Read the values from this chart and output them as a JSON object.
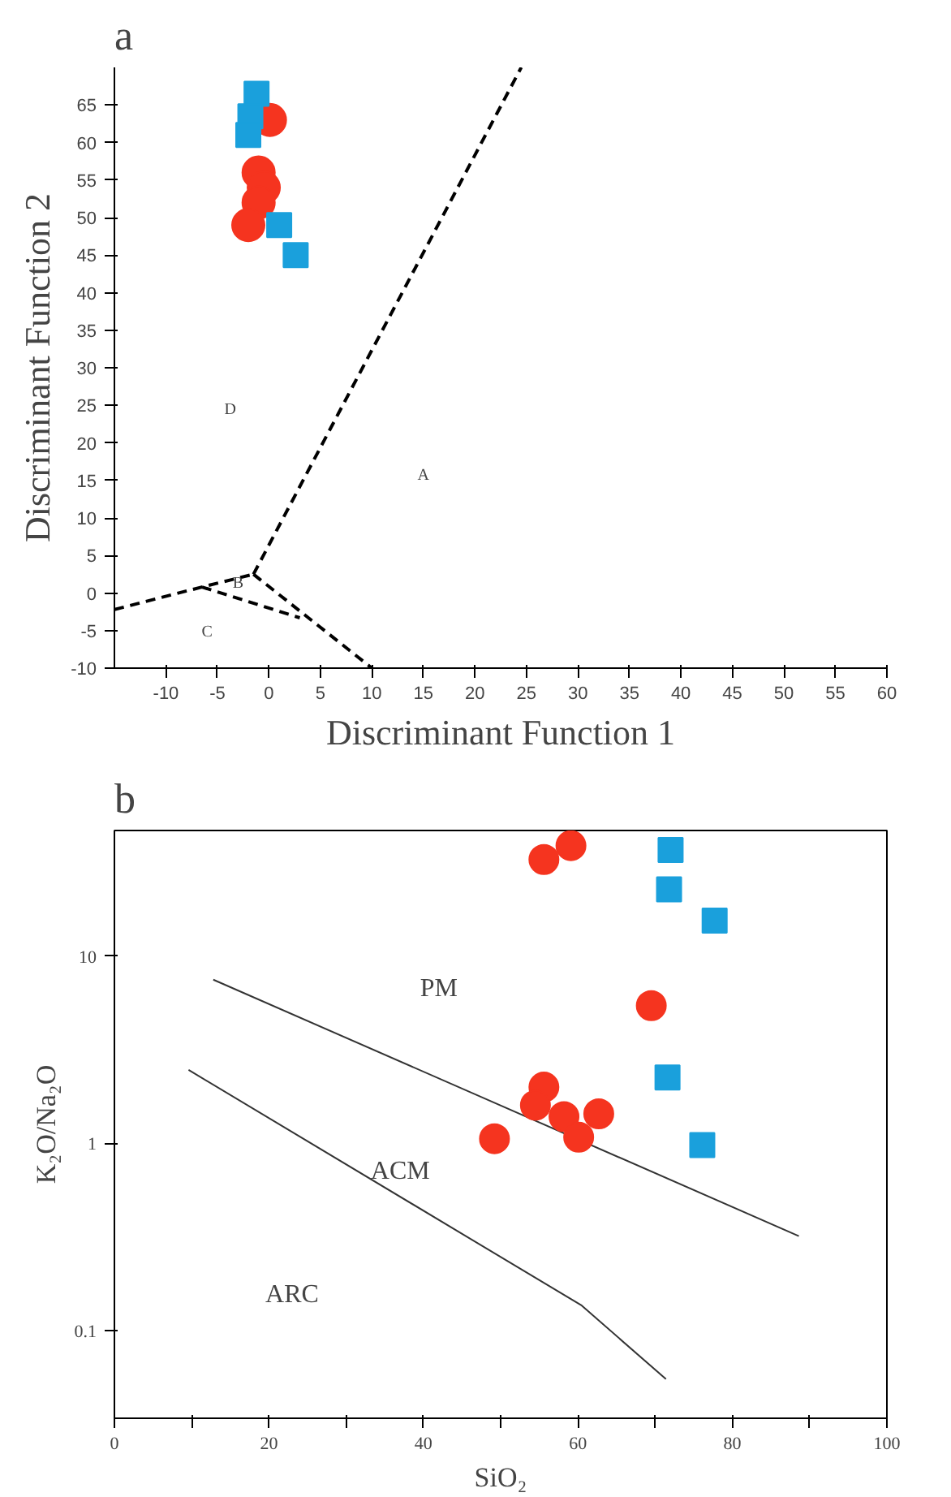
{
  "chart_data": [
    {
      "type": "scatter",
      "title": "a",
      "xlabel": "Discriminant Function 1",
      "ylabel": "Discriminant Function 2",
      "xlim": [
        -15,
        60
      ],
      "ylim": [
        -10,
        70
      ],
      "xticks": [
        -10,
        -5,
        0,
        5,
        10,
        15,
        20,
        25,
        30,
        35,
        40,
        45,
        50,
        55,
        60
      ],
      "yticks": [
        -10,
        -5,
        0,
        5,
        10,
        15,
        20,
        25,
        30,
        35,
        40,
        45,
        50,
        55,
        60,
        65
      ],
      "grid": false,
      "series": [
        {
          "type": "line",
          "color": "#000000",
          "marker": "none",
          "line_style": "dashed",
          "x": [
            -15,
            -6.5,
            -1.5
          ],
          "values": [
            -2.2,
            0.8,
            2.5
          ]
        },
        {
          "type": "line",
          "color": "#000000",
          "marker": "none",
          "line_style": "dashed",
          "x": [
            -1.5,
            24.5
          ],
          "values": [
            2.5,
            70
          ]
        },
        {
          "type": "line",
          "color": "#000000",
          "marker": "none",
          "line_style": "dashed",
          "x": [
            -1.5,
            10
          ],
          "values": [
            2.5,
            -10
          ]
        },
        {
          "type": "line",
          "color": "#000000",
          "marker": "none",
          "line_style": "dashed",
          "x": [
            -6.5,
            3
          ],
          "values": [
            0.8,
            -3.3
          ]
        },
        {
          "color": "#f5341f",
          "marker": "circle",
          "x": [
            0.1,
            -1,
            -0.5,
            -1,
            -2
          ],
          "values": [
            63,
            56,
            54,
            52,
            49
          ]
        },
        {
          "color": "#1aa0dc",
          "marker": "square",
          "x": [
            -1.2,
            -1.8,
            -2,
            1,
            2.6
          ],
          "values": [
            66.5,
            63.5,
            61,
            49,
            45
          ]
        }
      ],
      "annotations": [
        "D",
        "A",
        "B",
        "C"
      ]
    },
    {
      "type": "scatter",
      "title": "b",
      "xlabel": "SiO₂",
      "ylabel": "K₂O/Na₂O",
      "log": "y",
      "xlim": [
        0,
        100
      ],
      "ylim": [
        0.034,
        47
      ],
      "xticks": [
        0,
        {
          "value": 10,
          "label": null
        },
        20,
        {
          "value": 30,
          "label": null
        },
        40,
        {
          "value": 50,
          "label": null
        },
        60,
        {
          "value": 70,
          "label": null
        },
        80,
        {
          "value": 90,
          "label": null
        },
        100
      ],
      "yticks": [
        0.1,
        1,
        10
      ],
      "grid": false,
      "series": [
        {
          "type": "line",
          "color": "#333333",
          "marker": "none",
          "line_style": "solid",
          "x": [
            12.8,
            88.6
          ],
          "values": [
            7.5,
            0.32
          ]
        },
        {
          "type": "line",
          "color": "#333333",
          "marker": "none",
          "line_style": "solid",
          "x": [
            9.6,
            60.5,
            71.4
          ],
          "values": [
            2.47,
            0.136,
            0.055
          ]
        },
        {
          "color": "#f5341f",
          "marker": "circle",
          "x": [
            55.6,
            59.1,
            69.5,
            55.6,
            54.5,
            58.2,
            60.1,
            62.7,
            49.2
          ],
          "values": [
            32.9,
            39,
            5.45,
            2.0,
            1.6,
            1.39,
            1.08,
            1.44,
            1.06
          ]
        },
        {
          "color": "#1aa0dc",
          "marker": "square",
          "x": [
            72,
            71.8,
            77.7,
            71.6,
            76.1
          ],
          "values": [
            37,
            22.8,
            15.5,
            2.25,
            0.98
          ]
        }
      ],
      "annotations": [
        "PM",
        "ACM",
        "ARC"
      ]
    }
  ]
}
